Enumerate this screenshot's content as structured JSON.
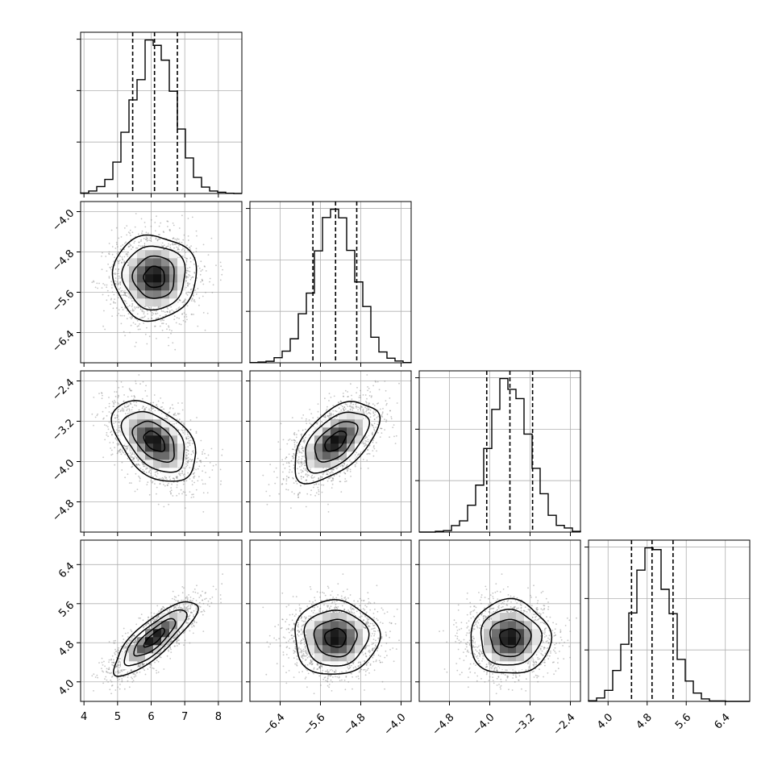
{
  "chart_data": {
    "type": "corner",
    "title": "",
    "parameters": [
      {
        "name": "",
        "range": [
          3.9,
          8.7
        ],
        "ticks": [
          4,
          5,
          6,
          7,
          8
        ],
        "tick_labels": [
          "4",
          "5",
          "6",
          "7",
          "8"
        ],
        "mean": 6.1,
        "std": 0.62,
        "quantiles": [
          5.45,
          6.1,
          6.78
        ]
      },
      {
        "name": "",
        "range": [
          -7.0,
          -3.8
        ],
        "ticks": [
          -6.4,
          -5.6,
          -4.8,
          -4.0
        ],
        "tick_labels": [
          "−6.4",
          "−5.6",
          "−4.8",
          "−4.0"
        ],
        "mean": -5.3,
        "std": 0.42,
        "quantiles": [
          -5.75,
          -5.3,
          -4.88
        ]
      },
      {
        "name": "",
        "range": [
          -5.4,
          -2.2
        ],
        "ticks": [
          -4.8,
          -4.0,
          -3.2,
          -2.4
        ],
        "tick_labels": [
          "−4.8",
          "−4.0",
          "−3.2",
          "−2.4"
        ],
        "mean": -3.6,
        "std": 0.4,
        "quantiles": [
          -4.06,
          -3.6,
          -3.15
        ]
      },
      {
        "name": "",
        "range": [
          3.6,
          6.9
        ],
        "ticks": [
          4.0,
          4.8,
          5.6,
          6.4
        ],
        "tick_labels": [
          "4.0",
          "4.8",
          "5.6",
          "6.4"
        ],
        "mean": 4.9,
        "std": 0.38,
        "quantiles": [
          4.48,
          4.9,
          5.33
        ]
      }
    ],
    "correlations": [
      {
        "pair": [
          0,
          1
        ],
        "rho": 0.0
      },
      {
        "pair": [
          0,
          2
        ],
        "rho": -0.45
      },
      {
        "pair": [
          1,
          2
        ],
        "rho": 0.55
      },
      {
        "pair": [
          0,
          3
        ],
        "rho": 0.82
      },
      {
        "pair": [
          1,
          3
        ],
        "rho": 0.0
      },
      {
        "pair": [
          2,
          3
        ],
        "rho": 0.0
      }
    ],
    "hist_bins": 20,
    "quantile_line_style": "dashed",
    "contour_levels_sigma": [
      0.5,
      1.0,
      1.5,
      2.0
    ],
    "grid": true,
    "colors": {
      "ink": "#000000",
      "grid": "#b0b0b0",
      "points": "#808080"
    }
  }
}
